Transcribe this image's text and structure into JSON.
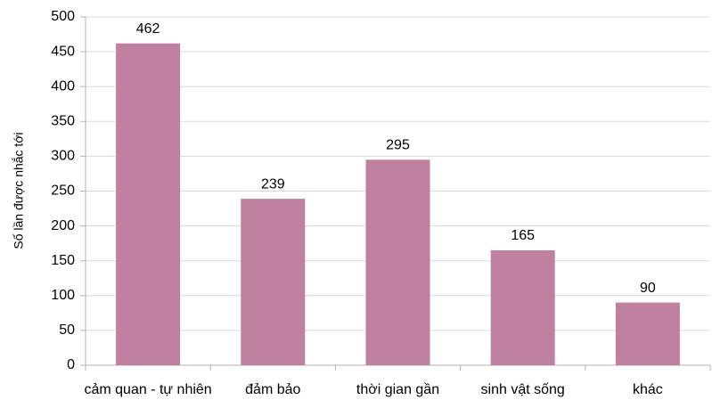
{
  "chart_data": {
    "type": "bar",
    "y_label": "Số lần được nhắc tới",
    "categories": [
      "cảm quan - tự nhiên",
      "đảm bảo",
      "thời gian gần",
      "sinh vật sống",
      "khác"
    ],
    "values": [
      462,
      239,
      295,
      165,
      90
    ],
    "color": "#c0809f",
    "ylim": [
      0,
      500
    ],
    "yticks": [
      0,
      50,
      100,
      150,
      200,
      250,
      300,
      350,
      400,
      450,
      500
    ],
    "grid": true
  }
}
